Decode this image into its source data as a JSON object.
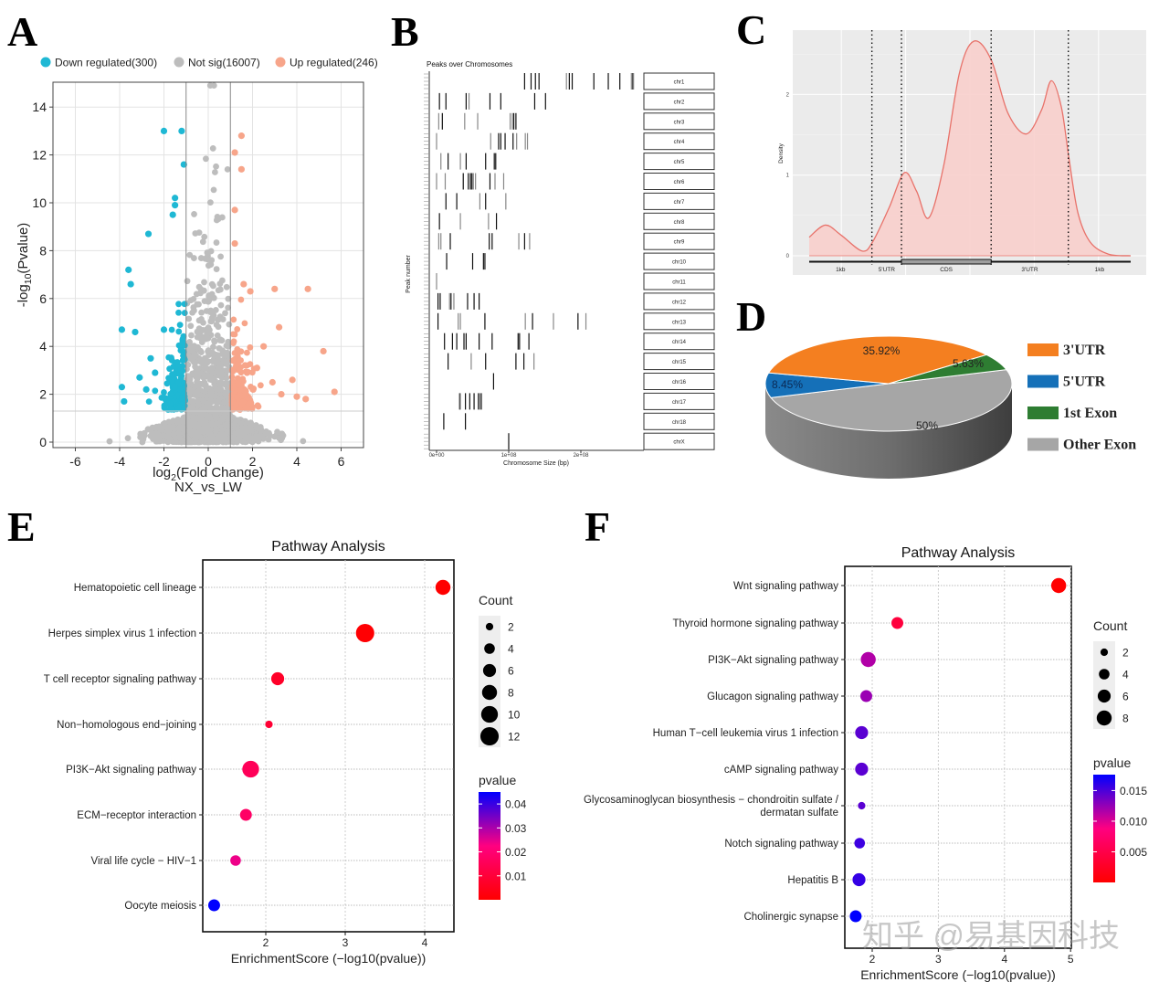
{
  "panel_labels": {
    "A": "A",
    "B": "B",
    "C": "C",
    "D": "D",
    "E": "E",
    "F": "F"
  },
  "watermark": "知乎 @易基因科技",
  "chart_data": [
    {
      "type": "scatter",
      "subtitle": "NX_vs_LW",
      "xlabel": "log2(Fold Change)",
      "ylabel": "-log10(Pvalue)",
      "xlim": [
        -7,
        7
      ],
      "ylim": [
        0,
        15
      ],
      "xticks": [
        "-6",
        "-4",
        "-2",
        "0",
        "2",
        "4",
        "6"
      ],
      "yticks": [
        "0",
        "2",
        "4",
        "6",
        "8",
        "10",
        "12",
        "14"
      ],
      "grid": true,
      "thresholds": {
        "log2fc": 1,
        "neg_log10_p": 1.3
      },
      "legend_position": "top",
      "series": [
        {
          "name": "Down regulated(300)",
          "color": "#1fb8d4",
          "points": [
            [
              -2,
              13
            ],
            [
              -1.2,
              13
            ],
            [
              -1.1,
              11.6
            ],
            [
              -1.5,
              10.2
            ],
            [
              -1.5,
              9.9
            ],
            [
              -1.6,
              9.5
            ],
            [
              -2.7,
              8.7
            ],
            [
              -3.6,
              7.2
            ],
            [
              -3.5,
              6.6
            ],
            [
              -3.9,
              4.7
            ],
            [
              -3.3,
              4.6
            ],
            [
              -2,
              4.7
            ],
            [
              -2.6,
              3.5
            ],
            [
              -3.1,
              2.7
            ],
            [
              -3.9,
              2.3
            ],
            [
              -3.8,
              1.7
            ],
            [
              -2.4,
              2.9
            ],
            [
              -2.8,
              2.2
            ]
          ]
        },
        {
          "name": "Not sig(16007)",
          "color": "#bdbdbd",
          "points": []
        },
        {
          "name": "Up regulated(246)",
          "color": "#f7a58a",
          "points": [
            [
              1.5,
              12.8
            ],
            [
              1.2,
              12.1
            ],
            [
              1.5,
              11.4
            ],
            [
              1.2,
              9.7
            ],
            [
              1.2,
              8.3
            ],
            [
              3,
              6.4
            ],
            [
              4.5,
              6.4
            ],
            [
              1.6,
              6.6
            ],
            [
              1.9,
              6.3
            ],
            [
              3.2,
              4.8
            ],
            [
              5.2,
              3.8
            ],
            [
              5.7,
              2.1
            ],
            [
              2.5,
              4
            ],
            [
              3.8,
              2.6
            ],
            [
              4,
              1.9
            ],
            [
              4.4,
              1.8
            ],
            [
              2.2,
              3.1
            ],
            [
              3.3,
              2
            ],
            [
              2.9,
              2.5
            ]
          ]
        }
      ]
    },
    {
      "type": "peak-track",
      "title": "Peaks over Chromosomes",
      "xlabel": "Chromosome Size (bp)",
      "ylabel": "Peak number",
      "xticks": [
        "0e+00",
        "1e+08",
        "2e+08"
      ],
      "rows": [
        {
          "chrom": "chr1",
          "positions_bp": [
            122000000.0,
            131000000.0,
            137000000.0,
            142000000.0,
            180000000.0,
            184000000.0,
            188000000.0,
            218000000.0,
            238000000.0,
            254000000.0,
            270000000.0,
            272000000.0,
            273000000.0
          ]
        },
        {
          "chrom": "chr2",
          "positions_bp": [
            4000000.0,
            13000000.0,
            41000000.0,
            45000000.0,
            74000000.0,
            89000000.0,
            136000000.0,
            151000000.0
          ]
        },
        {
          "chrom": "chr3",
          "positions_bp": [
            3000000.0,
            8000000.0,
            39000000.0,
            57000000.0,
            102000000.0,
            105000000.0,
            107000000.0,
            110000000.0
          ]
        },
        {
          "chrom": "chr4",
          "positions_bp": [
            0,
            75000000.0,
            86000000.0,
            89000000.0,
            95000000.0,
            106000000.0,
            111000000.0,
            123000000.0,
            126000000.0
          ]
        },
        {
          "chrom": "chr5",
          "positions_bp": [
            6000000.0,
            16000000.0,
            33000000.0,
            41000000.0,
            68000000.0,
            80000000.0,
            82000000.0
          ]
        },
        {
          "chrom": "chr6",
          "positions_bp": [
            0,
            12000000.0,
            37000000.0,
            44000000.0,
            47000000.0,
            49000000.0,
            51000000.0,
            54000000.0,
            74000000.0,
            81000000.0,
            93000000.0
          ]
        },
        {
          "chrom": "chr7",
          "positions_bp": [
            13000000.0,
            28000000.0,
            60000000.0,
            68000000.0,
            96000000.0
          ]
        },
        {
          "chrom": "chr8",
          "positions_bp": [
            4000000.0,
            33000000.0,
            72000000.0,
            83000000.0
          ]
        },
        {
          "chrom": "chr9",
          "positions_bp": [
            3000000.0,
            6000000.0,
            19000000.0,
            73000000.0,
            77000000.0,
            114000000.0,
            122000000.0,
            129000000.0
          ]
        },
        {
          "chrom": "chr10",
          "positions_bp": [
            14000000.0,
            50000000.0,
            65000000.0,
            67000000.0
          ]
        },
        {
          "chrom": "chr11",
          "positions_bp": [
            0
          ]
        },
        {
          "chrom": "chr12",
          "positions_bp": [
            2000000.0,
            5000000.0,
            18000000.0,
            20000000.0,
            24000000.0,
            43000000.0,
            52000000.0,
            59000000.0
          ]
        },
        {
          "chrom": "chr13",
          "positions_bp": [
            2000000.0,
            30000000.0,
            33000000.0,
            67000000.0,
            123000000.0,
            133000000.0,
            162000000.0,
            196000000.0,
            207000000.0
          ]
        },
        {
          "chrom": "chr14",
          "positions_bp": [
            11000000.0,
            22000000.0,
            28000000.0,
            38000000.0,
            41000000.0,
            59000000.0,
            77000000.0,
            113000000.0,
            115000000.0,
            128000000.0
          ]
        },
        {
          "chrom": "chr15",
          "positions_bp": [
            16000000.0,
            48000000.0,
            68000000.0,
            110000000.0,
            121000000.0,
            135000000.0
          ]
        },
        {
          "chrom": "chr16",
          "positions_bp": [
            79000000.0
          ]
        },
        {
          "chrom": "chr17",
          "positions_bp": [
            32000000.0,
            33000000.0,
            40000000.0,
            46000000.0,
            52000000.0,
            58000000.0,
            60000000.0,
            62000000.0
          ]
        },
        {
          "chrom": "chr18",
          "positions_bp": [
            10000000.0,
            40000000.0
          ]
        },
        {
          "chrom": "chrX",
          "positions_bp": [
            100000000.0
          ]
        }
      ]
    },
    {
      "type": "area",
      "ylabel": "Density",
      "yticks": [
        "0",
        "1",
        "2"
      ],
      "ylim": [
        0,
        2.7
      ],
      "color": "#e8726a",
      "fill": "#f8cfcc",
      "regions": [
        "1kb",
        "5'UTR",
        "CDS",
        "3'UTR",
        "1kb"
      ],
      "region_boundaries": [
        0,
        0.195,
        0.287,
        0.566,
        0.806,
        1
      ],
      "x": [
        0,
        0.05,
        0.098,
        0.164,
        0.197,
        0.249,
        0.296,
        0.334,
        0.372,
        0.419,
        0.467,
        0.512,
        0.566,
        0.618,
        0.675,
        0.723,
        0.753,
        0.784,
        0.808,
        0.836,
        0.874,
        0.931,
        1
      ],
      "y": [
        0.23,
        0.38,
        0.26,
        0.06,
        0.17,
        0.6,
        1.03,
        0.8,
        0.47,
        1.13,
        2.26,
        2.66,
        2.43,
        1.77,
        1.51,
        1.81,
        2.17,
        1.85,
        1.21,
        0.53,
        0.17,
        0.02,
        0
      ]
    },
    {
      "type": "pie",
      "labels": [
        "Other Exon",
        "5'UTR",
        "3'UTR",
        "1st Exon"
      ],
      "values": [
        50,
        8.45,
        35.92,
        5.63
      ],
      "value_labels": [
        "50%",
        "8.45%",
        "35.92%",
        "5.63%"
      ],
      "colors": [
        "#a6a6a6",
        "#1570b8",
        "#f47f20",
        "#2e7d32"
      ],
      "legend_order": [
        "3'UTR",
        "5'UTR",
        "1st Exon",
        "Other Exon"
      ],
      "legend_position": "right"
    },
    {
      "type": "scatter",
      "title": "Pathway Analysis",
      "xlabel": "EnrichmentScore (−log10(pvalue))",
      "xlim": [
        1.2,
        4.4
      ],
      "xticks": [
        2,
        3,
        4
      ],
      "categories": [
        "Hematopoietic cell lineage",
        "Herpes simplex virus 1 infection",
        "T cell receptor signaling pathway",
        "Non−homologous end−joining",
        "PI3K−Akt signaling pathway",
        "ECM−receptor interaction",
        "Viral life cycle − HIV−1",
        "Oocyte meiosis"
      ],
      "enrichment": [
        4.23,
        3.25,
        2.15,
        2.04,
        1.81,
        1.75,
        1.62,
        1.35
      ],
      "count": [
        8,
        12,
        6,
        2,
        10,
        5,
        4,
        5
      ],
      "pvalue": [
        6e-05,
        0.00056,
        0.0071,
        0.0091,
        0.0155,
        0.0178,
        0.024,
        0.045
      ],
      "size_legend": {
        "title": "Count",
        "values": [
          2,
          4,
          6,
          8,
          10,
          12
        ]
      },
      "color_legend": {
        "title": "pvalue",
        "range": [
          0,
          0.045
        ],
        "ticks": [
          "0.01",
          "0.02",
          "0.03",
          "0.04"
        ],
        "tick_values": [
          0.01,
          0.02,
          0.03,
          0.04
        ],
        "low": "#ff0000",
        "high": "#0000ff"
      }
    },
    {
      "type": "scatter",
      "title": "Pathway Analysis",
      "xlabel": "EnrichmentScore (−log10(pvalue))",
      "xlim": [
        1.6,
        5.0
      ],
      "xticks": [
        2,
        3,
        4,
        5
      ],
      "categories": [
        "Wnt signaling pathway",
        "Thyroid hormone signaling pathway",
        "PI3K−Akt signaling pathway",
        "Glucagon signaling pathway",
        "Human T−cell leukemia virus 1 infection",
        "cAMP signaling pathway",
        "Glycosaminoglycan biosynthesis − chondroitin sulfate / dermatan sulfate",
        "Notch signaling pathway",
        "Hepatitis B",
        "Cholinergic synapse"
      ],
      "enrichment": [
        4.82,
        2.38,
        1.94,
        1.91,
        1.84,
        1.84,
        1.84,
        1.81,
        1.8,
        1.75
      ],
      "count": [
        8,
        5,
        8,
        5,
        6,
        6,
        2,
        4,
        6,
        5
      ],
      "pvalue": [
        1.5e-05,
        0.0042,
        0.0115,
        0.0123,
        0.0145,
        0.0145,
        0.0145,
        0.0155,
        0.0158,
        0.0178
      ],
      "size_legend": {
        "title": "Count",
        "values": [
          2,
          4,
          6,
          8
        ]
      },
      "color_legend": {
        "title": "pvalue",
        "range": [
          0,
          0.0176
        ],
        "ticks": [
          "0.005",
          "0.010",
          "0.015"
        ],
        "tick_values": [
          0.005,
          0.01,
          0.015
        ],
        "low": "#ff0000",
        "high": "#0000ff"
      }
    }
  ]
}
